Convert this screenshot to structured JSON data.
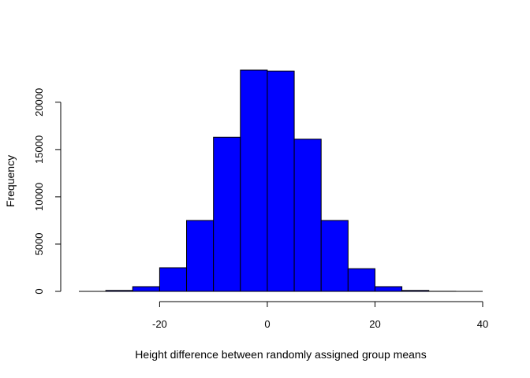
{
  "chart_data": {
    "type": "bar",
    "title": "",
    "xlabel": "Height difference between randomly assigned group means",
    "ylabel": "Frequency",
    "bin_edges": [
      -30,
      -25,
      -20,
      -15,
      -10,
      -5,
      0,
      5,
      10,
      15,
      20,
      25,
      30,
      35
    ],
    "values": [
      100,
      500,
      2500,
      7500,
      16300,
      23400,
      23300,
      16100,
      7500,
      2400,
      500,
      100,
      10
    ],
    "xlim": [
      -35,
      40
    ],
    "ylim": [
      0,
      23400
    ],
    "x_ticks": [
      -20,
      0,
      20,
      40
    ],
    "x_tick_labels": [
      "-20",
      "0",
      "20",
      "40"
    ],
    "y_ticks": [
      0,
      5000,
      10000,
      15000,
      20000
    ],
    "y_tick_labels": [
      "0",
      "5000",
      "10000",
      "15000",
      "20000"
    ],
    "bar_color": "#0000ff",
    "border_color": "#000000",
    "grid": false,
    "legend": "none"
  }
}
